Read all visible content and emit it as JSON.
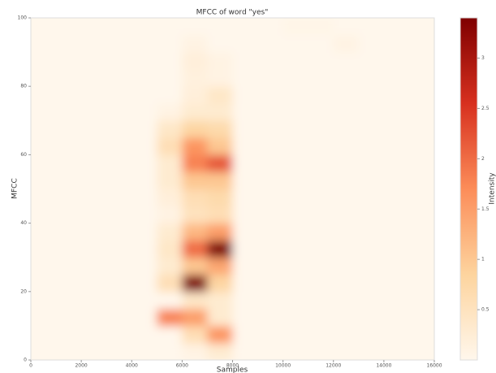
{
  "chart_data": {
    "type": "heatmap",
    "title": "MFCC of word \"yes\"",
    "x_label": "Samples",
    "y_label": "MFCC",
    "xlim": [
      0,
      16000
    ],
    "xticks": [
      0,
      2000,
      4000,
      6000,
      8000,
      10000,
      12000,
      14000,
      16000
    ],
    "ylim": [
      0,
      100
    ],
    "yticks": [
      0,
      20,
      40,
      60,
      80,
      100
    ],
    "colorbar_label": "Intensity",
    "clim": [
      0,
      3.4
    ],
    "cticks": [
      0.5,
      1.0,
      1.5,
      2.0,
      2.5,
      3.0
    ],
    "colormap": [
      "#fff7ec",
      "#fdd49e",
      "#fc8d59",
      "#d7301f",
      "#7f0000"
    ],
    "values": [
      [
        0,
        0,
        0,
        0,
        0,
        0,
        0.1,
        0.3,
        0,
        0,
        0,
        0,
        0,
        0,
        0,
        0
      ],
      [
        0,
        0,
        0,
        0,
        0,
        0,
        0.6,
        1.6,
        0,
        0,
        0,
        0,
        0,
        0,
        0,
        0
      ],
      [
        0,
        0,
        0,
        0,
        0,
        1.8,
        1.5,
        0.3,
        0,
        0,
        0,
        0,
        0,
        0,
        0,
        0
      ],
      [
        0,
        0,
        0,
        0,
        0,
        0,
        0.4,
        0.3,
        0,
        0,
        0,
        0,
        0,
        0,
        0,
        0
      ],
      [
        0,
        0,
        0,
        0,
        0,
        0.6,
        3.4,
        0.8,
        0,
        0,
        0,
        0,
        0,
        0,
        0,
        0
      ],
      [
        0,
        0,
        0,
        0,
        0,
        0.3,
        1.0,
        1.4,
        0,
        0,
        0,
        0,
        0,
        0,
        0,
        0
      ],
      [
        0,
        0,
        0,
        0,
        0,
        0.4,
        2.0,
        3.6,
        0,
        0,
        0,
        0,
        0,
        0,
        0,
        0
      ],
      [
        0,
        0,
        0,
        0,
        0,
        0.3,
        1.2,
        1.5,
        0,
        0,
        0,
        0,
        0,
        0,
        0,
        0
      ],
      [
        0,
        0,
        0,
        0,
        0,
        0.1,
        0.5,
        0.6,
        0,
        0,
        0,
        0,
        0,
        0,
        0,
        0
      ],
      [
        0,
        0,
        0,
        0,
        0,
        0.2,
        0.6,
        0.7,
        0,
        0,
        0,
        0,
        0,
        0,
        0,
        0
      ],
      [
        0,
        0,
        0,
        0,
        0,
        0.3,
        1.0,
        1.0,
        0,
        0,
        0,
        0,
        0,
        0,
        0,
        0
      ],
      [
        0,
        0,
        0,
        0,
        0,
        0.3,
        1.8,
        2.2,
        0,
        0,
        0,
        0,
        0,
        0,
        0,
        0
      ],
      [
        0,
        0,
        0,
        0,
        0,
        0.6,
        1.6,
        1.0,
        0,
        0,
        0,
        0,
        0,
        0,
        0,
        0
      ],
      [
        0,
        0,
        0,
        0,
        0,
        0.4,
        0.8,
        0.7,
        0,
        0,
        0,
        0,
        0,
        0,
        0,
        0
      ],
      [
        0,
        0,
        0,
        0,
        0,
        0.1,
        0.3,
        0.3,
        0,
        0,
        0,
        0,
        0,
        0,
        0,
        0
      ],
      [
        0,
        0,
        0,
        0,
        0,
        0,
        0.2,
        0.4,
        0,
        0,
        0,
        0,
        0,
        0,
        0,
        0
      ],
      [
        0,
        0,
        0,
        0,
        0,
        0,
        0.15,
        0.1,
        0,
        0,
        0,
        0,
        0,
        0,
        0,
        0
      ],
      [
        0,
        0,
        0,
        0,
        0,
        0,
        0.2,
        0.1,
        0,
        0,
        0,
        0,
        0,
        0,
        0,
        0
      ],
      [
        0,
        0,
        0,
        0,
        0,
        0,
        0.1,
        0,
        0,
        0,
        0,
        0,
        0.1,
        0,
        0,
        0
      ],
      [
        0,
        0,
        0,
        0,
        0,
        0,
        0,
        0,
        0,
        0,
        0.05,
        0.05,
        0,
        0,
        0,
        0
      ]
    ]
  }
}
